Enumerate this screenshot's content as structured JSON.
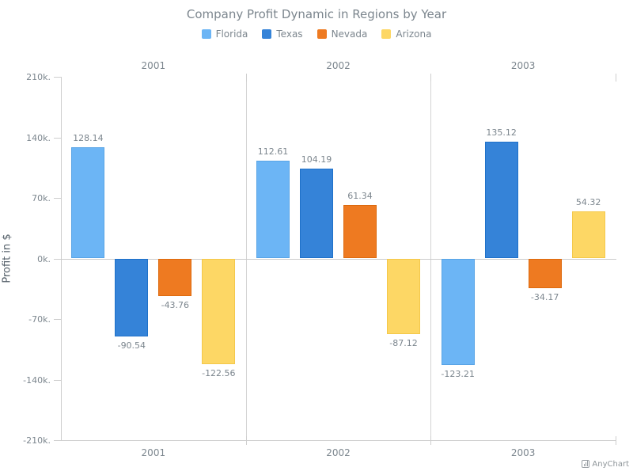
{
  "title": "Company Profit Dynamic in Regions by Year",
  "chart_data": {
    "type": "bar",
    "title": "Company Profit Dynamic in Regions by Year",
    "categories": [
      "2001",
      "2002",
      "2003"
    ],
    "series": [
      {
        "name": "Florida",
        "fill": "#6cb5f5",
        "stroke": "#58a4e6",
        "values": [
          128.14,
          112.61,
          -123.21
        ]
      },
      {
        "name": "Texas",
        "fill": "#3583d8",
        "stroke": "#1f71c9",
        "values": [
          -90.54,
          104.19,
          135.12
        ]
      },
      {
        "name": "Nevada",
        "fill": "#ee7a21",
        "stroke": "#dd6a0e",
        "values": [
          -43.76,
          61.34,
          -34.17
        ]
      },
      {
        "name": "Arizona",
        "fill": "#fdd765",
        "stroke": "#f4c84a",
        "values": [
          -122.56,
          -87.12,
          54.32
        ]
      }
    ],
    "xlabel": "",
    "ylabel": "Profit in $",
    "ylim": [
      -210,
      210
    ],
    "y_ticks": [
      {
        "value": 210,
        "label": "210k."
      },
      {
        "value": 140,
        "label": "140k."
      },
      {
        "value": 70,
        "label": "70k."
      },
      {
        "value": 0,
        "label": "0k."
      },
      {
        "value": -70,
        "label": "-70k."
      },
      {
        "value": -140,
        "label": "-140k."
      },
      {
        "value": -210,
        "label": "-210k."
      }
    ],
    "legend_position": "top",
    "grid": "vertical category separators and zero line only",
    "category_labels_shown": "top and bottom",
    "value_labels": [
      "128.14",
      "-90.54",
      "-43.76",
      "-122.56",
      "112.61",
      "104.19",
      "61.34",
      "-87.12",
      "-123.21",
      "135.12",
      "-34.17",
      "54.32"
    ]
  },
  "colors": {
    "title_text": "#7c868e",
    "tick_text": "#7c868e",
    "value_label_text": "#7c868e",
    "axis_title_text": "#545f69",
    "axis_line": "#cecece",
    "separator_line": "#d4d4d4",
    "zero_line": "#cbcbcb",
    "credit_text": "#8e9599"
  },
  "credit": {
    "label": "AnyChart",
    "icon": "bar-chart-icon"
  }
}
